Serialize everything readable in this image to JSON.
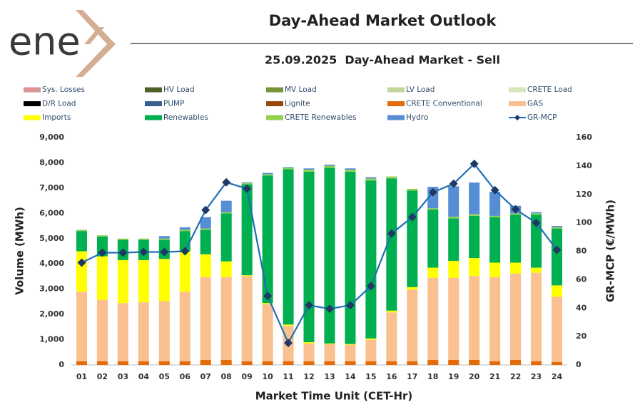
{
  "logo": "ene",
  "chart_data": {
    "type": "bar",
    "title": "Day-Ahead Market Outlook",
    "subtitle": "25.09.2025  Day-Ahead Market - Sell",
    "x_label": "Market Time Unit (CET-Hr)",
    "y_label": "Volume (MWh)",
    "y2_label": "GR-MCP (€/MWh)",
    "categories": [
      "01",
      "02",
      "03",
      "04",
      "05",
      "06",
      "07",
      "08",
      "09",
      "10",
      "11",
      "12",
      "13",
      "14",
      "15",
      "16",
      "17",
      "18",
      "19",
      "20",
      "21",
      "22",
      "23",
      "24"
    ],
    "ylim": [
      0,
      9000
    ],
    "yticks": [
      0,
      {
        "value": 1000,
        "label": "1,000"
      },
      {
        "value": 2000,
        "label": "2,000"
      },
      {
        "value": 3000,
        "label": "3,000"
      },
      {
        "value": 4000,
        "label": "4,000"
      },
      {
        "value": 5000,
        "label": "5,000"
      },
      {
        "value": 6000,
        "label": "6,000"
      },
      {
        "value": 7000,
        "label": "7,000"
      },
      {
        "value": 8000,
        "label": "8,000"
      },
      {
        "value": 9000,
        "label": "9,000"
      }
    ],
    "y2lim": [
      0,
      160
    ],
    "y2ticks": [
      0,
      20,
      40,
      60,
      80,
      100,
      120,
      140,
      160
    ],
    "series": [
      {
        "name": "Sys. Losses",
        "color": "#d99594",
        "values": [
          0,
          0,
          0,
          0,
          0,
          0,
          0,
          0,
          0,
          0,
          0,
          0,
          0,
          0,
          0,
          0,
          0,
          0,
          0,
          0,
          0,
          0,
          0,
          0
        ]
      },
      {
        "name": "HV Load",
        "color": "#4f6228",
        "values": [
          0,
          0,
          0,
          0,
          0,
          0,
          0,
          0,
          0,
          0,
          0,
          0,
          0,
          0,
          0,
          0,
          0,
          0,
          0,
          0,
          0,
          0,
          0,
          0
        ]
      },
      {
        "name": "MV Load",
        "color": "#77933c",
        "values": [
          0,
          0,
          0,
          0,
          0,
          0,
          0,
          0,
          0,
          0,
          0,
          0,
          0,
          0,
          0,
          0,
          0,
          0,
          0,
          0,
          0,
          0,
          0,
          0
        ]
      },
      {
        "name": "LV Load",
        "color": "#c3d69b",
        "values": [
          0,
          0,
          0,
          0,
          0,
          0,
          0,
          0,
          0,
          0,
          0,
          0,
          0,
          0,
          0,
          0,
          0,
          0,
          0,
          0,
          0,
          0,
          0,
          0
        ]
      },
      {
        "name": "CRETE Load",
        "color": "#d7e4bd",
        "values": [
          0,
          0,
          0,
          0,
          0,
          0,
          0,
          0,
          0,
          0,
          0,
          0,
          0,
          0,
          0,
          0,
          0,
          0,
          0,
          0,
          0,
          0,
          0,
          0
        ]
      },
      {
        "name": "D/R Load",
        "color": "#000000",
        "values": [
          0,
          0,
          0,
          0,
          0,
          0,
          0,
          0,
          0,
          0,
          0,
          0,
          0,
          0,
          0,
          0,
          0,
          0,
          0,
          0,
          0,
          0,
          0,
          0
        ]
      },
      {
        "name": "PUMP",
        "color": "#366092",
        "values": [
          0,
          0,
          0,
          0,
          0,
          0,
          0,
          0,
          0,
          0,
          0,
          0,
          0,
          0,
          0,
          0,
          0,
          0,
          0,
          0,
          0,
          0,
          0,
          0
        ]
      },
      {
        "name": "Lignite",
        "color": "#974706",
        "values": [
          0,
          0,
          0,
          0,
          0,
          0,
          0,
          0,
          0,
          0,
          0,
          0,
          0,
          0,
          0,
          0,
          0,
          0,
          0,
          0,
          0,
          0,
          0,
          0
        ]
      },
      {
        "name": "CRETE Conventional",
        "color": "#e36c09",
        "values": [
          150,
          150,
          150,
          150,
          150,
          150,
          200,
          200,
          150,
          150,
          150,
          150,
          150,
          150,
          150,
          150,
          150,
          200,
          200,
          200,
          150,
          200,
          150,
          120
        ]
      },
      {
        "name": "GAS",
        "color": "#fac090",
        "values": [
          2750,
          2430,
          2300,
          2330,
          2380,
          2750,
          3280,
          3280,
          3370,
          2250,
          1400,
          700,
          670,
          650,
          850,
          1930,
          2830,
          3250,
          3250,
          3320,
          3330,
          3420,
          3500,
          2580
        ]
      },
      {
        "name": "Imports",
        "color": "#ffff00",
        "values": [
          1600,
          1720,
          1700,
          1670,
          1670,
          1600,
          900,
          620,
          30,
          50,
          50,
          50,
          30,
          30,
          50,
          70,
          100,
          400,
          670,
          710,
          570,
          430,
          200,
          450
        ]
      },
      {
        "name": "Renewables",
        "color": "#00b050",
        "values": [
          800,
          780,
          800,
          800,
          750,
          800,
          970,
          1900,
          3600,
          5050,
          6150,
          6750,
          6950,
          6820,
          6250,
          5230,
          3820,
          2300,
          1680,
          1670,
          1800,
          1900,
          2100,
          2250
        ]
      },
      {
        "name": "CRETE Renewables",
        "color": "#92d050",
        "values": [
          50,
          50,
          50,
          50,
          50,
          50,
          50,
          50,
          50,
          50,
          50,
          80,
          80,
          80,
          80,
          80,
          70,
          50,
          70,
          70,
          50,
          50,
          50,
          50
        ]
      },
      {
        "name": "Hydro",
        "color": "#558ed5",
        "values": [
          0,
          0,
          0,
          0,
          100,
          100,
          450,
          450,
          30,
          50,
          30,
          50,
          50,
          50,
          50,
          0,
          0,
          850,
          1200,
          1250,
          950,
          300,
          50,
          50
        ]
      },
      {
        "name": "GR-MCP",
        "color": "#1f6fb4",
        "marker_color": "#1f3864",
        "axis": "y2",
        "values": [
          72,
          79,
          79,
          79.5,
          79.5,
          80,
          109,
          128.5,
          124,
          48.5,
          15.5,
          42,
          39.5,
          42,
          55.5,
          92.5,
          104,
          121.5,
          127.5,
          141.5,
          123,
          109.5,
          100,
          81
        ]
      }
    ]
  }
}
